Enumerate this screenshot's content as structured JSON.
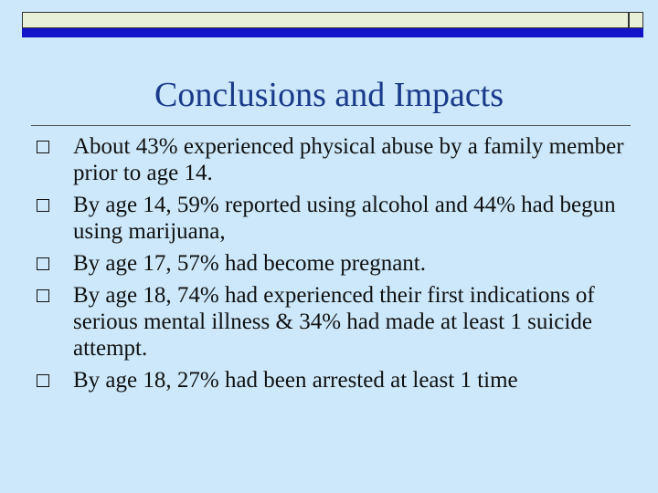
{
  "slide": {
    "title": "Conclusions and Impacts",
    "bullets": [
      "About 43% experienced physical abuse by a family member prior to age 14.",
      "By age 14, 59% reported using alcohol and 44% had begun using marijuana,",
      "By age 17, 57% had become pregnant.",
      "By age 18, 74% had experienced their first indications of serious mental illness & 34% had made at least 1 suicide attempt.",
      "By age 18, 27% had been arrested at least 1 time"
    ]
  },
  "colors": {
    "background": "#cce8fa",
    "title": "#1a3a8a",
    "accent_bar": "#1313c8"
  },
  "icons": {
    "bullet": "hollow-square-icon"
  }
}
